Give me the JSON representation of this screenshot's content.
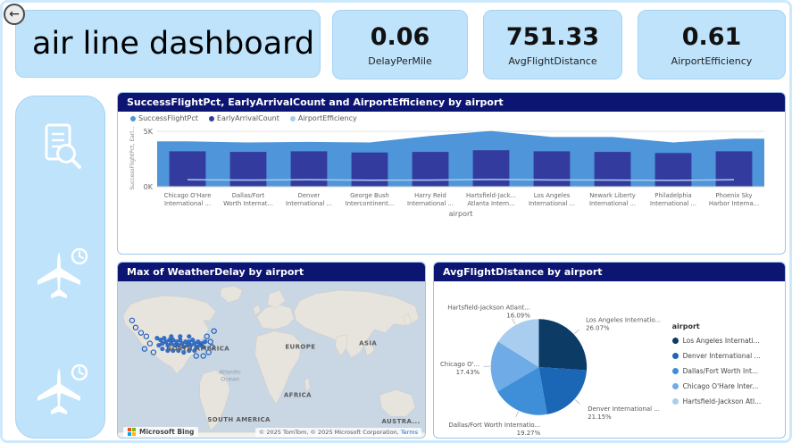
{
  "header": {
    "title": "air line dashboard"
  },
  "icons": {
    "back_arrow": "←"
  },
  "kpis": [
    {
      "value": "0.06",
      "label": "DelayPerMile"
    },
    {
      "value": "751.33",
      "label": "AvgFlightDistance"
    },
    {
      "value": "0.61",
      "label": "AirportEfficiency"
    }
  ],
  "sidebar": {
    "icons": [
      "report-search",
      "plane-clock",
      "plane-clock"
    ]
  },
  "colors": {
    "card_bg": "#BEE3FB",
    "header_navy": "#0C1572",
    "area_blue": "#4E95D9",
    "bar_navy": "#333C9E",
    "efficiency_blue": "#A9CCEE"
  },
  "chart_data": [
    {
      "id": "combo",
      "type": "bar",
      "subtype": "combo-area-bar-line",
      "title": "SuccessFlightPct, EarlyArrivalCount and AirportEfficiency by airport",
      "xlabel": "airport",
      "ylabel": "SuccessFlightPct, Earl...",
      "ylim": [
        0,
        5.5
      ],
      "yticks": [
        {
          "label": "0K",
          "value": 0
        },
        {
          "label": "5K",
          "value": 5
        }
      ],
      "legend_position": "top-left",
      "categories": [
        {
          "line1": "Chicago O'Hare",
          "line2": "International ..."
        },
        {
          "line1": "Dallas/Fort",
          "line2": "Worth Internat..."
        },
        {
          "line1": "Denver",
          "line2": "International ..."
        },
        {
          "line1": "George Bush",
          "line2": "Intercontinent..."
        },
        {
          "line1": "Harry Reid",
          "line2": "International ..."
        },
        {
          "line1": "Hartsfield-Jack...",
          "line2": "Atlanta Intern..."
        },
        {
          "line1": "Los Angeles",
          "line2": "International ..."
        },
        {
          "line1": "Newark Liberty",
          "line2": "International ..."
        },
        {
          "line1": "Philadelphia",
          "line2": "International ..."
        },
        {
          "line1": "Phoenix Sky",
          "line2": "Harbor Interna..."
        }
      ],
      "series": [
        {
          "name": "SuccessFlightPct",
          "type": "area",
          "color": "#4E95D9",
          "values": [
            4.1,
            4.0,
            4.05,
            4.0,
            4.6,
            5.05,
            4.5,
            4.5,
            4.0,
            4.35
          ]
        },
        {
          "name": "EarlyArrivalCount",
          "type": "bar",
          "color": "#333C9E",
          "values": [
            3.2,
            3.15,
            3.2,
            3.1,
            3.15,
            3.3,
            3.2,
            3.15,
            3.05,
            3.2
          ]
        },
        {
          "name": "AirportEfficiency",
          "type": "line",
          "color": "#A9CCEE",
          "values": [
            0.62,
            0.6,
            0.63,
            0.58,
            0.6,
            0.65,
            0.61,
            0.6,
            0.57,
            0.62
          ]
        }
      ]
    },
    {
      "id": "map",
      "type": "map",
      "title": "Max of WeatherDelay by airport",
      "marker_color": "#1F5FBE",
      "logo_text": "Microsoft Bing",
      "copyright": "© 2025 TomTom, © 2025 Microsoft Corporation,",
      "terms_label": "Terms",
      "labels": [
        {
          "text": "NORTH AMERICA",
          "x": 90,
          "y": 78,
          "kind": "continent"
        },
        {
          "text": "EUROPE",
          "x": 205,
          "y": 76,
          "kind": "continent"
        },
        {
          "text": "ASIA",
          "x": 281,
          "y": 72,
          "kind": "continent"
        },
        {
          "text": "AFRICA",
          "x": 202,
          "y": 130,
          "kind": "continent"
        },
        {
          "text": "SOUTH AMERICA",
          "x": 136,
          "y": 158,
          "kind": "continent"
        },
        {
          "text": "AUSTRA...",
          "x": 318,
          "y": 160,
          "kind": "continent"
        },
        {
          "text": "Atlantic",
          "x": 126,
          "y": 104,
          "kind": "ocean"
        },
        {
          "text": "Ocean",
          "x": 126,
          "y": 112,
          "kind": "ocean"
        }
      ],
      "markers": {
        "solid": [
          [
            44,
            64
          ],
          [
            48,
            66
          ],
          [
            52,
            64
          ],
          [
            50,
            70
          ],
          [
            54,
            68
          ],
          [
            58,
            66
          ],
          [
            56,
            72
          ],
          [
            60,
            70
          ],
          [
            62,
            66
          ],
          [
            64,
            72
          ],
          [
            66,
            68
          ],
          [
            68,
            72
          ],
          [
            70,
            66
          ],
          [
            72,
            70
          ],
          [
            74,
            74
          ],
          [
            76,
            68
          ],
          [
            78,
            72
          ],
          [
            80,
            68
          ],
          [
            82,
            72
          ],
          [
            84,
            66
          ],
          [
            86,
            70
          ],
          [
            88,
            74
          ],
          [
            90,
            68
          ],
          [
            92,
            72
          ],
          [
            46,
            72
          ],
          [
            50,
            76
          ],
          [
            56,
            78
          ],
          [
            62,
            78
          ],
          [
            68,
            78
          ],
          [
            74,
            80
          ],
          [
            80,
            78
          ],
          [
            86,
            78
          ],
          [
            60,
            62
          ],
          [
            70,
            62
          ],
          [
            80,
            62
          ],
          [
            94,
            70
          ],
          [
            96,
            74
          ],
          [
            98,
            68
          ]
        ],
        "open": [
          [
            20,
            52
          ],
          [
            26,
            58
          ],
          [
            32,
            62
          ],
          [
            36,
            70
          ],
          [
            30,
            76
          ],
          [
            40,
            80
          ],
          [
            100,
            62
          ],
          [
            104,
            68
          ],
          [
            106,
            74
          ],
          [
            102,
            80
          ],
          [
            96,
            84
          ],
          [
            88,
            84
          ],
          [
            16,
            44
          ],
          [
            108,
            56
          ]
        ]
      }
    },
    {
      "id": "pie",
      "type": "pie",
      "title": "AvgFlightDistance by airport",
      "legend_title": "airport",
      "slices": [
        {
          "label": "Los Angeles Internatio...",
          "legend_label": "Los Angeles Internati...",
          "pct": 26.07,
          "pct_label": "26.07%",
          "color": "#0C3B66"
        },
        {
          "label": "Denver International ...",
          "legend_label": "Denver International ...",
          "pct": 21.15,
          "pct_label": "21.15%",
          "color": "#1B66B5"
        },
        {
          "label": "Dallas/Fort Worth Internatio...",
          "legend_label": "Dallas/Fort Worth Int...",
          "pct": 19.27,
          "pct_label": "19.27%",
          "color": "#3E8FD8"
        },
        {
          "label": "Chicago O'...",
          "legend_label": "Chicago O'Hare Inter...",
          "pct": 17.43,
          "pct_label": "17.43%",
          "color": "#6FABE6"
        },
        {
          "label": "Hartsfield-Jackson Atlant...",
          "legend_label": "Hartsfield-Jackson Atl...",
          "pct": 16.09,
          "pct_label": "16.09%",
          "color": "#A8CDEF"
        }
      ]
    }
  ]
}
